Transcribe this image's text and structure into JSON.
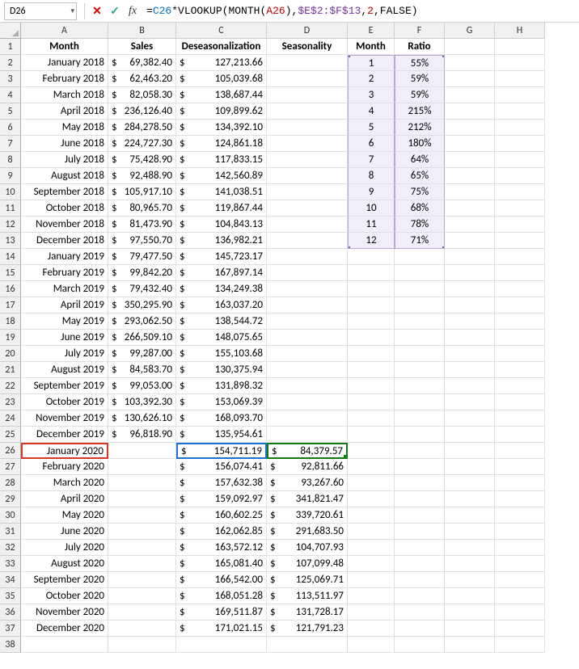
{
  "nameBox": "D26",
  "formula": {
    "tokens": [
      {
        "t": "=",
        "c": "tok-black"
      },
      {
        "t": "C26",
        "c": "tok-blue"
      },
      {
        "t": "*",
        "c": "tok-black"
      },
      {
        "t": "VLOOKUP",
        "c": "tok-black"
      },
      {
        "t": "(",
        "c": "tok-black"
      },
      {
        "t": "MONTH",
        "c": "tok-black"
      },
      {
        "t": "(",
        "c": "tok-black"
      },
      {
        "t": "A26",
        "c": "tok-red"
      },
      {
        "t": ")",
        "c": "tok-black"
      },
      {
        "t": ",",
        "c": "tok-black"
      },
      {
        "t": "$E$2:$F$13",
        "c": "tok-purple"
      },
      {
        "t": ",",
        "c": "tok-black"
      },
      {
        "t": "2",
        "c": "tok-red"
      },
      {
        "t": ",",
        "c": "tok-black"
      },
      {
        "t": "FALSE",
        "c": "tok-black"
      },
      {
        "t": ")",
        "c": "tok-black"
      }
    ]
  },
  "columns": [
    "A",
    "B",
    "C",
    "D",
    "E",
    "F",
    "G",
    "H"
  ],
  "headers": {
    "A": "Month",
    "B": "Sales",
    "C": "Deseasonalization",
    "D": "Seasonality",
    "E": "Month",
    "F": "Ratio"
  },
  "lookup": [
    {
      "m": "1",
      "r": "55%"
    },
    {
      "m": "2",
      "r": "59%"
    },
    {
      "m": "3",
      "r": "59%"
    },
    {
      "m": "4",
      "r": "215%"
    },
    {
      "m": "5",
      "r": "212%"
    },
    {
      "m": "6",
      "r": "180%"
    },
    {
      "m": "7",
      "r": "64%"
    },
    {
      "m": "8",
      "r": "65%"
    },
    {
      "m": "9",
      "r": "75%"
    },
    {
      "m": "10",
      "r": "68%"
    },
    {
      "m": "11",
      "r": "78%"
    },
    {
      "m": "12",
      "r": "71%"
    }
  ],
  "rows": [
    {
      "n": 2,
      "m": "January 2018",
      "s": "69,382.40",
      "d": "127,213.66"
    },
    {
      "n": 3,
      "m": "February 2018",
      "s": "62,463.20",
      "d": "105,039.68"
    },
    {
      "n": 4,
      "m": "March 2018",
      "s": "82,058.30",
      "d": "138,687.44"
    },
    {
      "n": 5,
      "m": "April 2018",
      "s": "236,126.40",
      "d": "109,899.62"
    },
    {
      "n": 6,
      "m": "May 2018",
      "s": "284,278.50",
      "d": "134,392.10"
    },
    {
      "n": 7,
      "m": "June 2018",
      "s": "224,727.30",
      "d": "124,861.18"
    },
    {
      "n": 8,
      "m": "July 2018",
      "s": "75,428.90",
      "d": "117,833.15"
    },
    {
      "n": 9,
      "m": "August 2018",
      "s": "92,488.90",
      "d": "142,560.89"
    },
    {
      "n": 10,
      "m": "September 2018",
      "s": "105,917.10",
      "d": "141,038.51"
    },
    {
      "n": 11,
      "m": "October 2018",
      "s": "80,965.70",
      "d": "119,867.44"
    },
    {
      "n": 12,
      "m": "November 2018",
      "s": "81,473.90",
      "d": "104,843.13"
    },
    {
      "n": 13,
      "m": "December 2018",
      "s": "97,550.70",
      "d": "136,982.21"
    },
    {
      "n": 14,
      "m": "January 2019",
      "s": "79,477.50",
      "d": "145,723.17"
    },
    {
      "n": 15,
      "m": "February 2019",
      "s": "99,842.20",
      "d": "167,897.14"
    },
    {
      "n": 16,
      "m": "March 2019",
      "s": "79,432.40",
      "d": "134,249.38"
    },
    {
      "n": 17,
      "m": "April 2019",
      "s": "350,295.90",
      "d": "163,037.20"
    },
    {
      "n": 18,
      "m": "May 2019",
      "s": "293,062.50",
      "d": "138,544.72"
    },
    {
      "n": 19,
      "m": "June 2019",
      "s": "266,509.10",
      "d": "148,075.65"
    },
    {
      "n": 20,
      "m": "July 2019",
      "s": "99,287.00",
      "d": "155,103.68"
    },
    {
      "n": 21,
      "m": "August 2019",
      "s": "84,583.70",
      "d": "130,375.94"
    },
    {
      "n": 22,
      "m": "September 2019",
      "s": "99,053.00",
      "d": "131,898.32"
    },
    {
      "n": 23,
      "m": "October 2019",
      "s": "103,392.30",
      "d": "153,069.39"
    },
    {
      "n": 24,
      "m": "November 2019",
      "s": "130,626.10",
      "d": "168,093.70"
    },
    {
      "n": 25,
      "m": "December 2019",
      "s": "96,818.90",
      "d": "135,954.61"
    },
    {
      "n": 26,
      "m": "January 2020",
      "s": "",
      "d": "154,711.19",
      "sea": "84,379.57",
      "activeRow": true
    },
    {
      "n": 27,
      "m": "February 2020",
      "s": "",
      "d": "156,074.41",
      "sea": "92,811.66"
    },
    {
      "n": 28,
      "m": "March 2020",
      "s": "",
      "d": "157,632.38",
      "sea": "93,267.60"
    },
    {
      "n": 29,
      "m": "April 2020",
      "s": "",
      "d": "159,092.97",
      "sea": "341,821.47"
    },
    {
      "n": 30,
      "m": "May 2020",
      "s": "",
      "d": "160,602.25",
      "sea": "339,720.61"
    },
    {
      "n": 31,
      "m": "June 2020",
      "s": "",
      "d": "162,062.85",
      "sea": "291,683.50"
    },
    {
      "n": 32,
      "m": "July 2020",
      "s": "",
      "d": "163,572.12",
      "sea": "104,707.93"
    },
    {
      "n": 33,
      "m": "August 2020",
      "s": "",
      "d": "165,081.40",
      "sea": "107,099.48"
    },
    {
      "n": 34,
      "m": "September 2020",
      "s": "",
      "d": "166,542.00",
      "sea": "125,069.71"
    },
    {
      "n": 35,
      "m": "October 2020",
      "s": "",
      "d": "168,051.28",
      "sea": "113,511.97"
    },
    {
      "n": 36,
      "m": "November 2020",
      "s": "",
      "d": "169,511.87",
      "sea": "131,728.17"
    },
    {
      "n": 37,
      "m": "December 2020",
      "s": "",
      "d": "171,021.15",
      "sea": "121,791.23"
    },
    {
      "n": 38,
      "m": "",
      "s": "",
      "d": ""
    }
  ],
  "colors": {
    "grid": "#e0e0e0",
    "headBg": "#f0f0f0",
    "selBlue": "#1e6fd6",
    "selRed": "#d63a1e",
    "selGreen": "#107c10",
    "lookupBg": "#f2eef9",
    "lookupBorder": "#b9a6d6"
  }
}
